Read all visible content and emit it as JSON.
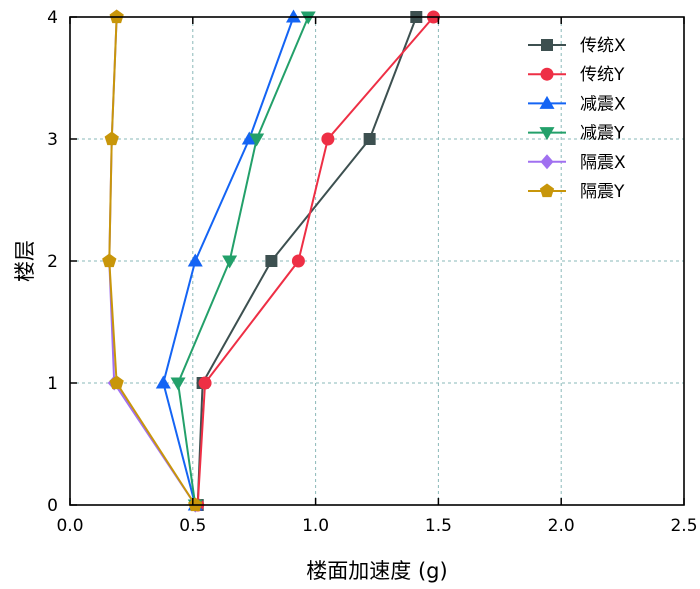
{
  "chart_data": {
    "type": "line",
    "title": "",
    "xlabel": "楼面加速度 (g)",
    "ylabel": "楼层",
    "xlim": [
      0,
      2.5
    ],
    "ylim": [
      0,
      4
    ],
    "xticks": [
      "0.0",
      "0.5",
      "1.0",
      "1.5",
      "2.0",
      "2.5"
    ],
    "yticks": [
      "0",
      "1",
      "2",
      "3",
      "4"
    ],
    "grid": true,
    "legend_position": "top-right",
    "y": [
      0,
      1,
      2,
      3,
      4
    ],
    "series": [
      {
        "name": "传统X",
        "marker": "square",
        "color": "#3d5050",
        "values": [
          0.52,
          0.54,
          0.82,
          1.22,
          1.41
        ]
      },
      {
        "name": "传统Y",
        "marker": "circle",
        "color": "#ee2f45",
        "values": [
          0.52,
          0.55,
          0.93,
          1.05,
          1.48
        ]
      },
      {
        "name": "减震X",
        "marker": "triangle-up",
        "color": "#1464f4",
        "values": [
          0.51,
          0.38,
          0.51,
          0.73,
          0.91
        ]
      },
      {
        "name": "减震Y",
        "marker": "triangle-down",
        "color": "#23a06a",
        "values": [
          0.51,
          0.44,
          0.65,
          0.76,
          0.97
        ]
      },
      {
        "name": "隔震X",
        "marker": "diamond",
        "color": "#a070f0",
        "values": [
          0.51,
          0.18,
          0.16,
          0.17,
          0.19
        ]
      },
      {
        "name": "隔震Y",
        "marker": "pentagon",
        "color": "#c8960a",
        "values": [
          0.51,
          0.19,
          0.16,
          0.17,
          0.19
        ]
      }
    ]
  }
}
